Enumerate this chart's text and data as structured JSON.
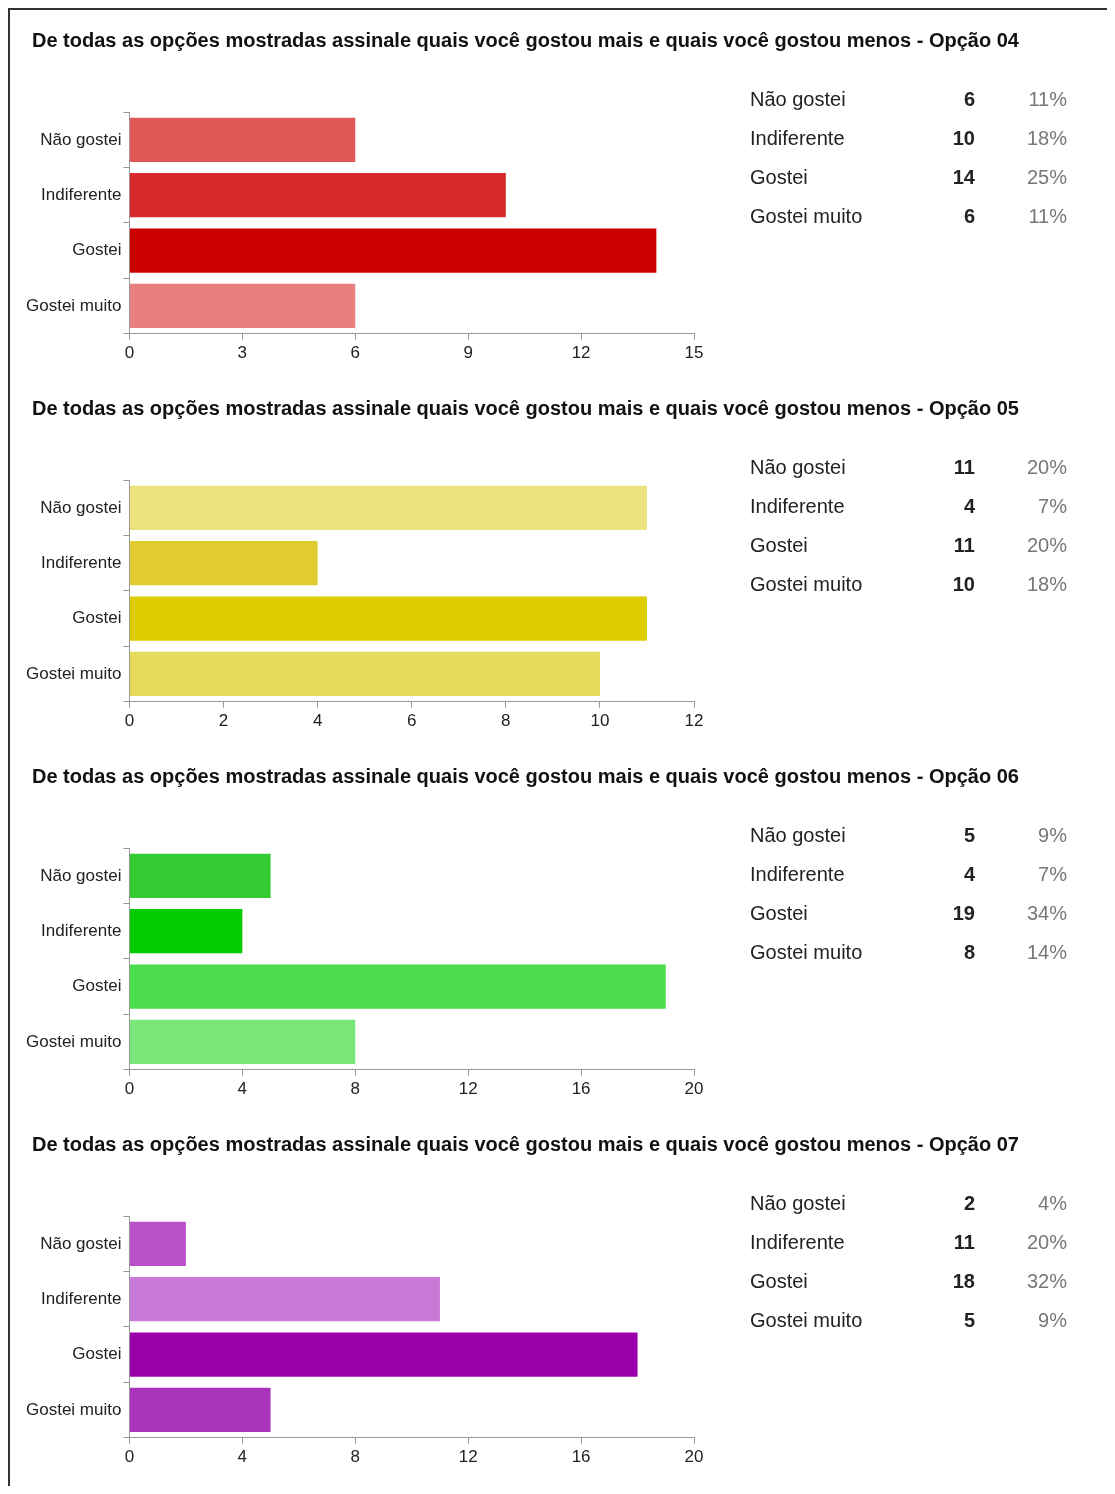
{
  "chart_data": [
    {
      "type": "bar",
      "orientation": "horizontal",
      "title": "De todas as opções mostradas assinale quais você gostou mais e quais você gostou menos - Opção 04",
      "categories": [
        "Não gostei",
        "Indiferente",
        "Gostei",
        "Gostei muito"
      ],
      "values": [
        6,
        10,
        14,
        6
      ],
      "colors": [
        "#e05757",
        "#d82a2a",
        "#cc0000",
        "#e88080"
      ],
      "xlim": [
        0,
        15
      ],
      "xticks": [
        0,
        3,
        6,
        9,
        12,
        15
      ],
      "legend": false,
      "grid": false
    },
    {
      "type": "other",
      "annotations": [
        "Não gostei",
        "6",
        "11%",
        "Indiferente",
        "10",
        "18%",
        "Gostei",
        "14",
        "25%",
        "Gostei muito",
        "6",
        "11%"
      ]
    },
    {
      "type": "bar",
      "orientation": "horizontal",
      "title": "De todas as opções mostradas assinale quais você gostou mais e quais você gostou menos - Opção 05",
      "categories": [
        "Não gostei",
        "Indiferente",
        "Gostei",
        "Gostei muito"
      ],
      "values": [
        11,
        4,
        11,
        10
      ],
      "colors": [
        "#ece37e",
        "#e0cc30",
        "#dccc00",
        "#e6da5a"
      ],
      "xlim": [
        0,
        12
      ],
      "xticks": [
        0,
        2,
        4,
        6,
        8,
        10,
        12
      ],
      "legend": false,
      "grid": false
    },
    {
      "type": "other",
      "annotations": [
        "Não gostei",
        "11",
        "20%",
        "Indiferente",
        "4",
        "7%",
        "Gostei",
        "11",
        "20%",
        "Gostei muito",
        "10",
        "18%"
      ]
    },
    {
      "type": "bar",
      "orientation": "horizontal",
      "title": "De todas as opções mostradas assinale quais você gostou mais e quais você gostou menos - Opção 06",
      "categories": [
        "Não gostei",
        "Indiferente",
        "Gostei",
        "Gostei muito"
      ],
      "values": [
        5,
        4,
        19,
        8
      ],
      "colors": [
        "#33cc33",
        "#00cc00",
        "#4cdd4c",
        "#7ae67a"
      ],
      "xlim": [
        0,
        20
      ],
      "xticks": [
        0,
        4,
        8,
        12,
        16,
        20
      ],
      "legend": false,
      "grid": false
    },
    {
      "type": "other",
      "annotations": [
        "Não gostei",
        "5",
        "9%",
        "Indiferente",
        "4",
        "7%",
        "Gostei",
        "19",
        "34%",
        "Gostei muito",
        "8",
        "14%"
      ]
    },
    {
      "type": "bar",
      "orientation": "horizontal",
      "title": "De todas as opções mostradas assinale quais você gostou mais e quais você gostou menos - Opção 07",
      "categories": [
        "Não gostei",
        "Indiferente",
        "Gostei",
        "Gostei muito"
      ],
      "values": [
        2,
        11,
        18,
        5
      ],
      "colors": [
        "#b94fc9",
        "#c87ad6",
        "#9900aa",
        "#aa33bb"
      ],
      "xlim": [
        0,
        20
      ],
      "xticks": [
        0,
        4,
        8,
        12,
        16,
        20
      ],
      "legend": false,
      "grid": false
    },
    {
      "type": "other",
      "annotations": [
        "Não gostei",
        "2",
        "4%",
        "Indiferente",
        "11",
        "20%",
        "Gostei",
        "18",
        "32%",
        "Gostei muito",
        "5",
        "9%"
      ]
    }
  ]
}
